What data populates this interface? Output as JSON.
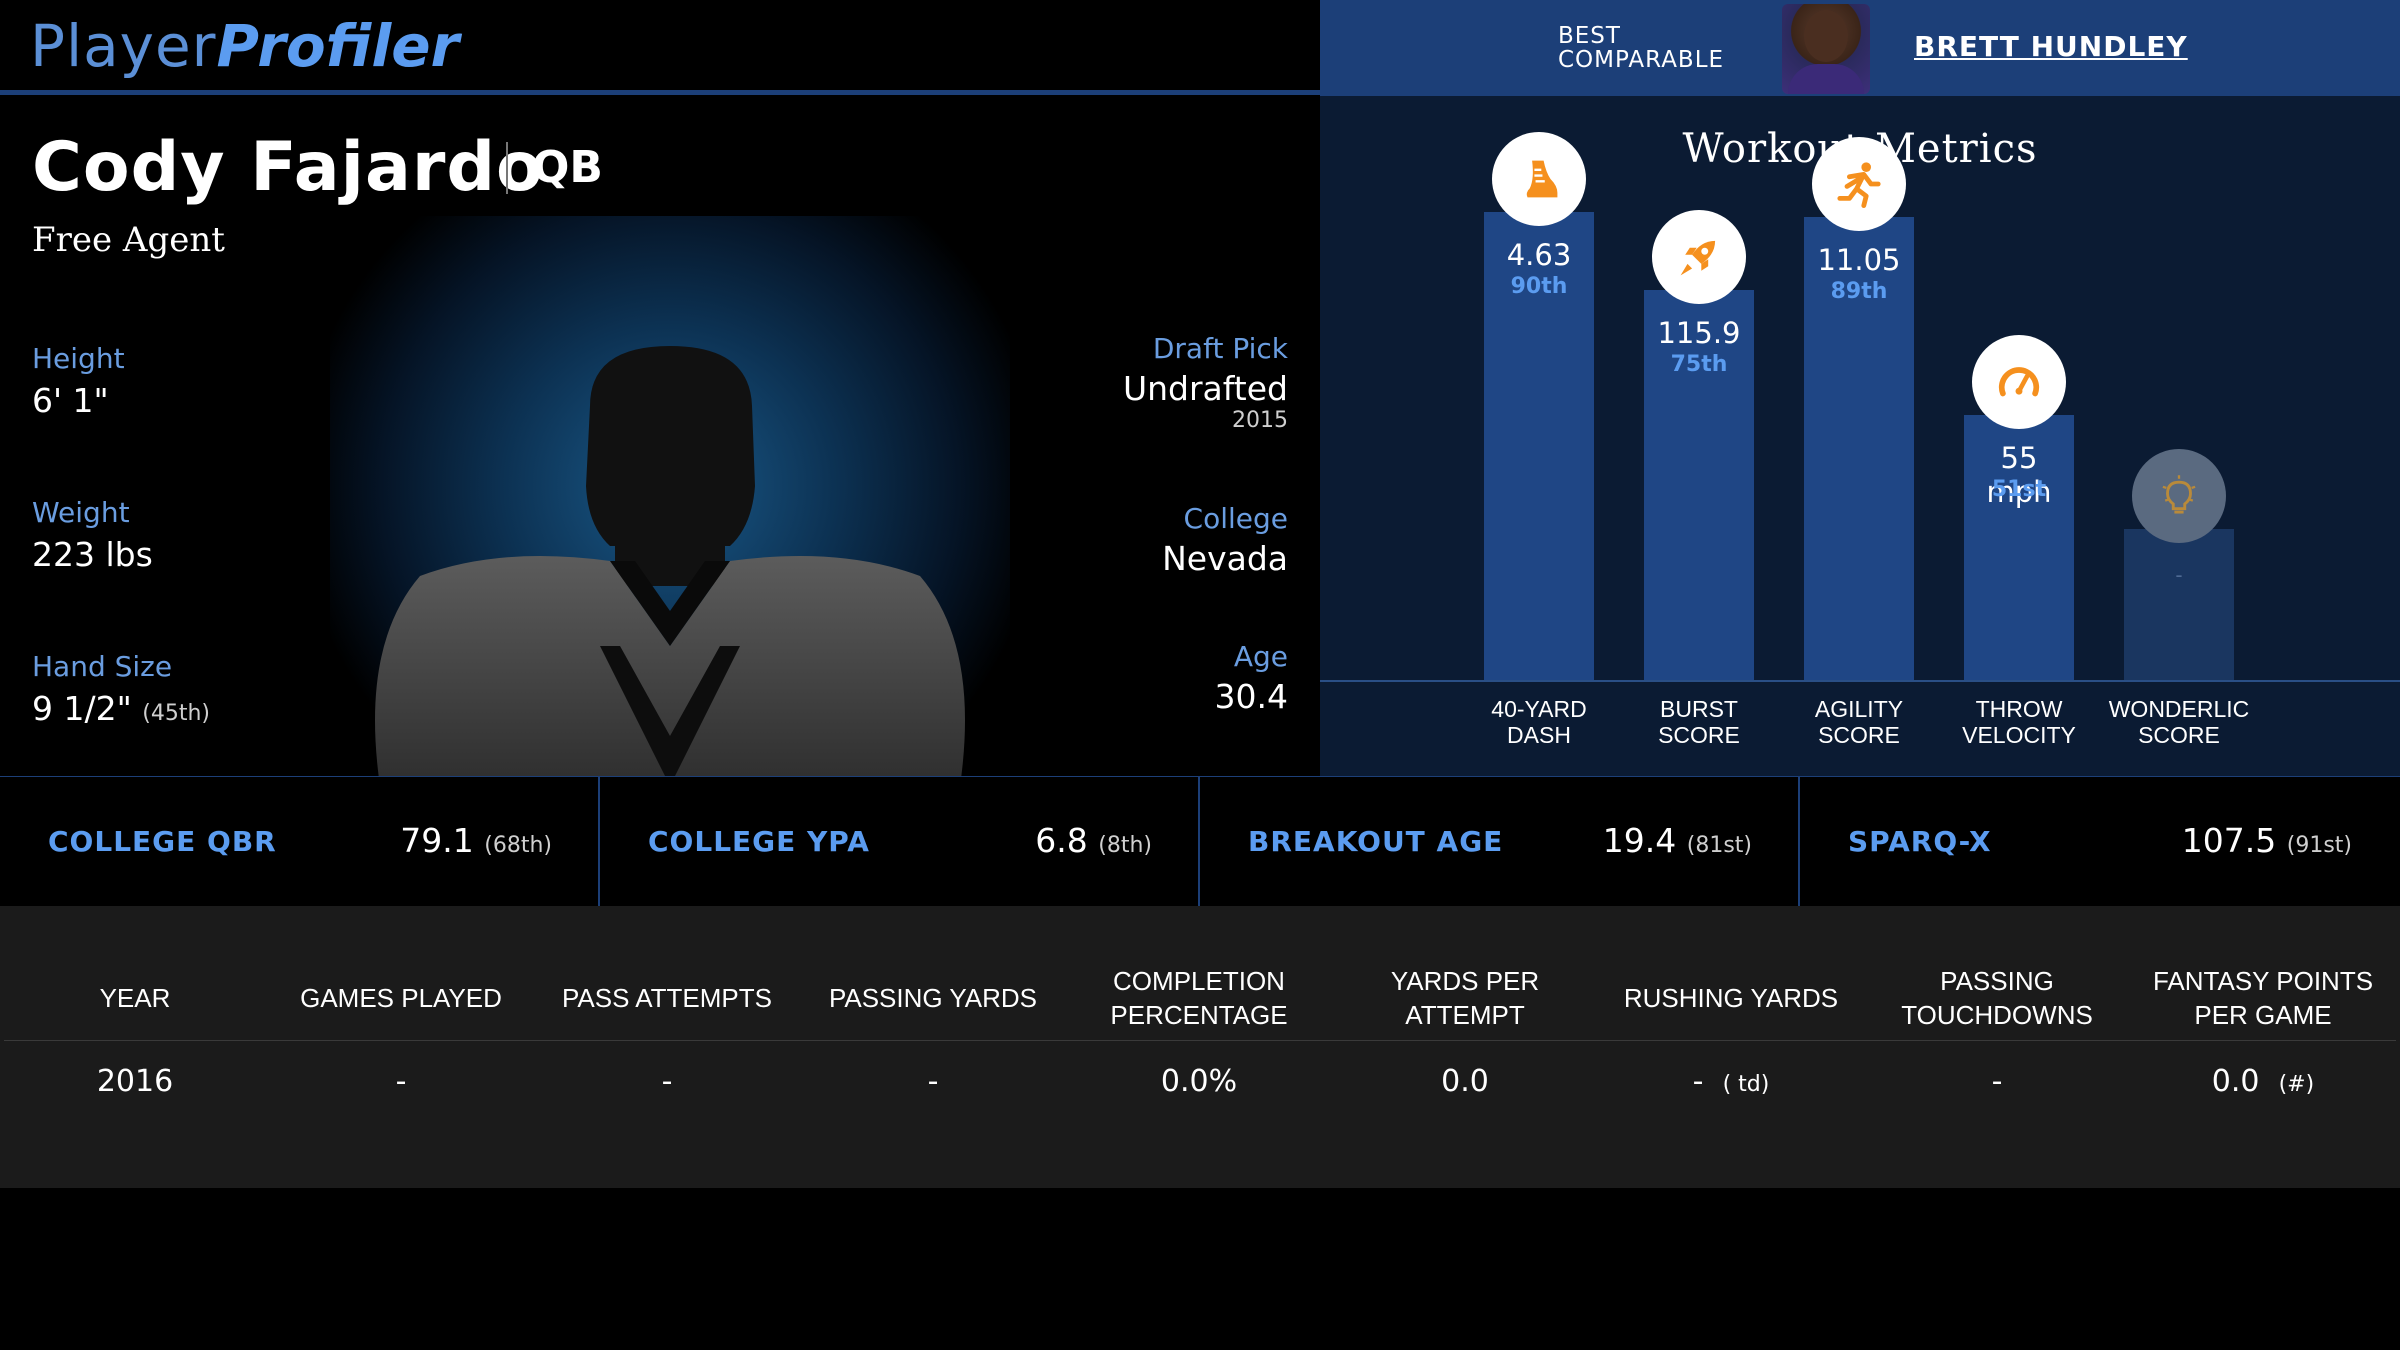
{
  "header": {
    "logo_player": "Player",
    "logo_profiler": "Profiler",
    "best_comparable_label_1": "BEST",
    "best_comparable_label_2": "COMPARABLE",
    "best_comparable_name": "BRETT HUNDLEY"
  },
  "player": {
    "name": "Cody Fajardo",
    "position": "QB",
    "team": "Free Agent",
    "height_label": "Height",
    "height": "6' 1\"",
    "weight_label": "Weight",
    "weight": "223 lbs",
    "hand_label": "Hand Size",
    "hand": "9 1/2\"",
    "hand_pct": "(45th)",
    "draft_label": "Draft Pick",
    "draft": "Undrafted",
    "draft_year": "2015",
    "college_label": "College",
    "college": "Nevada",
    "age_label": "Age",
    "age": "30.4"
  },
  "workout": {
    "title": "Workout Metrics",
    "metrics": [
      {
        "label_1": "40-YARD",
        "label_2": "DASH",
        "value": "4.63",
        "percentile": "90th",
        "percentile_num": 90,
        "icon": "shoe-icon"
      },
      {
        "label_1": "BURST",
        "label_2": "SCORE",
        "value": "115.9",
        "percentile": "75th",
        "percentile_num": 75,
        "icon": "rocket-icon"
      },
      {
        "label_1": "AGILITY",
        "label_2": "SCORE",
        "value": "11.05",
        "percentile": "89th",
        "percentile_num": 89,
        "icon": "runner-icon"
      },
      {
        "label_1": "THROW",
        "label_2": "VELOCITY",
        "value": "55 mph",
        "percentile": "51st",
        "percentile_num": 51,
        "icon": "speedometer-icon"
      },
      {
        "label_1": "WONDERLIC",
        "label_2": "SCORE",
        "value": "-",
        "percentile": "",
        "percentile_num": 29,
        "icon": "lightbulb-icon"
      }
    ]
  },
  "stats": [
    {
      "name": "COLLEGE QBR",
      "value": "79.1",
      "pct": "(68th)"
    },
    {
      "name": "COLLEGE YPA",
      "value": "6.8",
      "pct": "(8th)"
    },
    {
      "name": "BREAKOUT AGE",
      "value": "19.4",
      "pct": "(81st)"
    },
    {
      "name": "SPARQ-X",
      "value": "107.5",
      "pct": "(91st)"
    }
  ],
  "table": {
    "headers": [
      "YEAR",
      "GAMES PLAYED",
      "PASS ATTEMPTS",
      "PASSING YARDS",
      "COMPLETION PERCENTAGE",
      "YARDS PER ATTEMPT",
      "RUSHING YARDS",
      "PASSING TOUCHDOWNS",
      "FANTASY POINTS PER GAME"
    ],
    "row": {
      "year": "2016",
      "games": "-",
      "attempts": "-",
      "yards": "-",
      "completion": "0.0%",
      "ypa": "0.0",
      "rush": "-",
      "rush_td": "( td)",
      "pass_td": "-",
      "fppg": "0.0",
      "fppg_rank": "(#)"
    }
  }
}
